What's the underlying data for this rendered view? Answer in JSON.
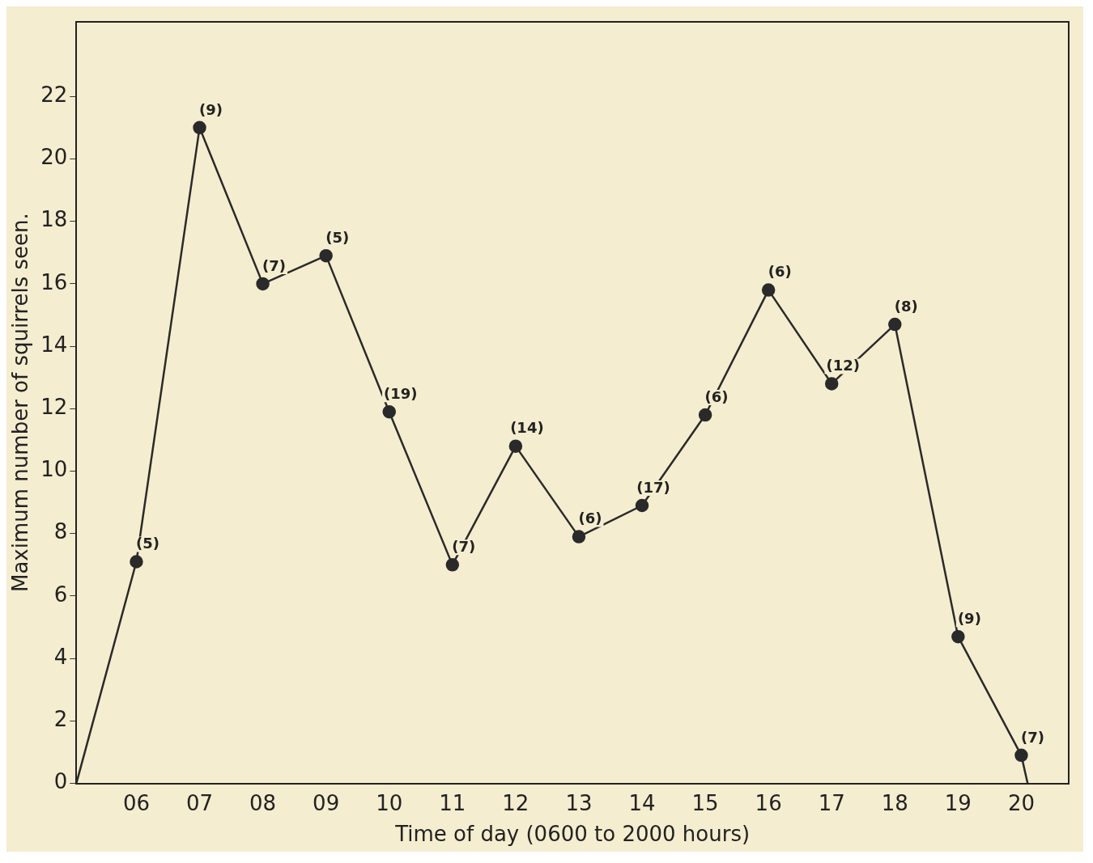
{
  "chart_data": {
    "type": "line",
    "xlabel": "Time of day (0600 to 2000 hours)",
    "ylabel": "Maximum number of squirrels seen.",
    "xlim": [
      5.05,
      20.75
    ],
    "ylim": [
      0,
      24.4
    ],
    "xticks": [
      {
        "value": 6,
        "label": "06"
      },
      {
        "value": 7,
        "label": "07"
      },
      {
        "value": 8,
        "label": "08"
      },
      {
        "value": 9,
        "label": "09"
      },
      10,
      11,
      12,
      13,
      14,
      15,
      16,
      17,
      18,
      19,
      20
    ],
    "yticks": [
      0,
      2,
      4,
      6,
      8,
      10,
      12,
      14,
      16,
      18,
      20,
      22
    ],
    "grid": false,
    "legend": false,
    "series": [
      {
        "color": "#2a2a2a",
        "marker": "circle",
        "x": [
          6,
          7,
          8,
          9,
          10,
          11,
          12,
          13,
          14,
          15,
          16,
          17,
          18,
          19,
          20
        ],
        "values": [
          7.1,
          21,
          16,
          16.9,
          11.9,
          7,
          10.8,
          7.9,
          8.9,
          11.8,
          15.8,
          12.8,
          14.7,
          4.7,
          0.9
        ]
      },
      {
        "color": "#2a2a2a",
        "marker": "none",
        "x": [
          5.05,
          6,
          13,
          20,
          20.1
        ],
        "values": [
          0,
          7.1,
          null,
          0.9,
          0
        ]
      }
    ],
    "annotations": [
      {
        "text": "(5)",
        "x": 6,
        "y": 7.1
      },
      {
        "text": "(9)",
        "x": 7,
        "y": 21
      },
      {
        "text": "(7)",
        "x": 8,
        "y": 16
      },
      {
        "text": "(5)",
        "x": 9,
        "y": 16.9
      },
      {
        "text": "(19)",
        "x": 10,
        "y": 11.9
      },
      {
        "text": "(7)",
        "x": 11,
        "y": 7
      },
      {
        "text": "(14)",
        "x": 12,
        "y": 10.8
      },
      {
        "text": "(6)",
        "x": 13,
        "y": 7.9
      },
      {
        "text": "(17)",
        "x": 14,
        "y": 8.9
      },
      {
        "text": "(6)",
        "x": 15,
        "y": 11.8
      },
      {
        "text": "(6)",
        "x": 16,
        "y": 15.8
      },
      {
        "text": "(12)",
        "x": 17,
        "y": 12.8
      },
      {
        "text": "(8)",
        "x": 18,
        "y": 14.7
      },
      {
        "text": "(9)",
        "x": 19,
        "y": 4.7
      },
      {
        "text": "(7)",
        "x": 20,
        "y": 0.9
      }
    ]
  }
}
